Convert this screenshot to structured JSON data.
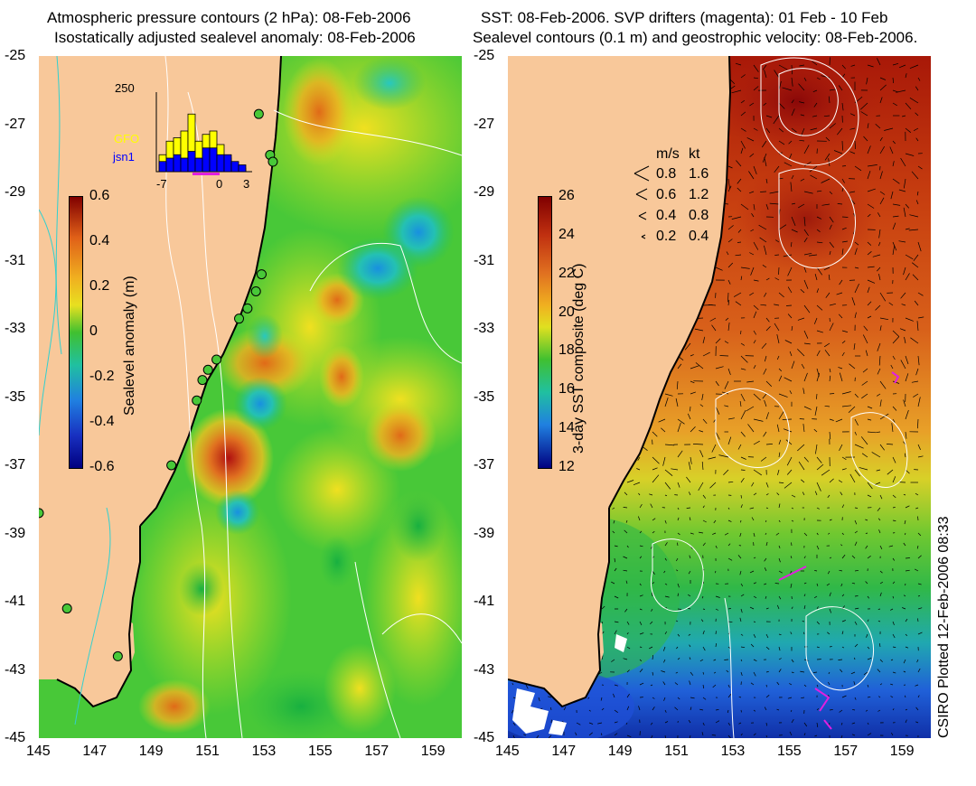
{
  "left": {
    "title_line1": "Atmospheric pressure contours (2 hPa): 08-Feb-2006",
    "title_line2": "Isostatically adjusted sealevel anomaly: 08-Feb-2006",
    "colorbar_label": "Sealevel anomaly (m)",
    "colorbar_ticks": [
      "0.6",
      "0.4",
      "0.2",
      "0",
      "-0.2",
      "-0.4",
      "-0.6"
    ],
    "colorbar_range": [
      -0.6,
      0.6
    ],
    "inset": {
      "y_max_label": "250",
      "x_ticks": [
        "-7",
        "0",
        "3"
      ],
      "legend": [
        {
          "name": "GFO",
          "color": "#ffff00"
        },
        {
          "name": "jsn1",
          "color": "#0000ff"
        }
      ],
      "bars_gfo": [
        0.25,
        0.45,
        0.5,
        0.6,
        0.85,
        0.45,
        0.55,
        0.6,
        0.4,
        0.2,
        0.1,
        0.05
      ],
      "bars_jsn1": [
        0.15,
        0.2,
        0.25,
        0.2,
        0.3,
        0.2,
        0.35,
        0.35,
        0.25,
        0.25,
        0.15,
        0.1
      ]
    },
    "tide_gauges": [
      {
        "lon": 152.8,
        "lat": -26.7
      },
      {
        "lon": 153.2,
        "lat": -27.9
      },
      {
        "lon": 153.3,
        "lat": -28.1
      },
      {
        "lon": 152.9,
        "lat": -31.4
      },
      {
        "lon": 152.7,
        "lat": -31.9
      },
      {
        "lon": 152.4,
        "lat": -32.4
      },
      {
        "lon": 152.1,
        "lat": -32.7
      },
      {
        "lon": 151.3,
        "lat": -33.9
      },
      {
        "lon": 151.0,
        "lat": -34.2
      },
      {
        "lon": 150.8,
        "lat": -34.5
      },
      {
        "lon": 150.6,
        "lat": -35.1
      },
      {
        "lon": 149.7,
        "lat": -37.0
      },
      {
        "lon": 145.0,
        "lat": -38.4
      },
      {
        "lon": 146.0,
        "lat": -41.2
      },
      {
        "lon": 147.8,
        "lat": -42.6
      }
    ]
  },
  "right": {
    "title_line1": "SST: 08-Feb-2006. SVP drifters (magenta): 01 Feb - 10 Feb",
    "title_line2": "Sealevel contours (0.1 m) and geostrophic velocity: 08-Feb-2006.",
    "colorbar_label": "3-day SST composite (deg C)",
    "colorbar_ticks": [
      "26",
      "24",
      "22",
      "20",
      "18",
      "16",
      "14",
      "12"
    ],
    "colorbar_range": [
      12,
      27
    ],
    "velocity_legend": {
      "header_ms": "m/s",
      "header_kt": "kt",
      "rows": [
        {
          "ms": "0.8",
          "kt": "1.6"
        },
        {
          "ms": "0.6",
          "kt": "1.2"
        },
        {
          "ms": "0.4",
          "kt": "0.8"
        },
        {
          "ms": "0.2",
          "kt": "0.4"
        }
      ]
    }
  },
  "axes": {
    "lat_ticks": [
      "-25",
      "-27",
      "-29",
      "-31",
      "-33",
      "-35",
      "-37",
      "-39",
      "-41",
      "-43",
      "-45"
    ],
    "lon_ticks": [
      "145",
      "147",
      "149",
      "151",
      "153",
      "155",
      "157",
      "159"
    ],
    "lat_range": [
      -45,
      -25
    ],
    "lon_range": [
      145,
      160
    ]
  },
  "credit": "CSIRO Plotted 12-Feb-2006 08:33"
}
